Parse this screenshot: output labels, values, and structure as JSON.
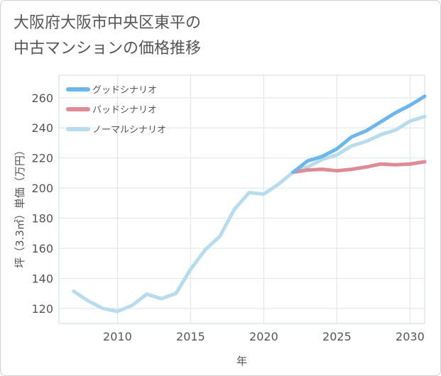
{
  "title_lines": [
    "大阪府大阪市中央区東平の",
    "中古マンションの価格推移"
  ],
  "chart_data": {
    "type": "line",
    "title": "大阪府大阪市中央区東平の中古マンションの価格推移",
    "xlabel": "年",
    "ylabel": "坪（3.3㎡）単価（万円）",
    "xlim": [
      2006,
      2031
    ],
    "ylim": [
      110,
      275
    ],
    "xticks": [
      2010,
      2015,
      2020,
      2025,
      2030
    ],
    "yticks": [
      120,
      140,
      160,
      180,
      200,
      220,
      240,
      260
    ],
    "grid": true,
    "legend_position": "top-left",
    "series": [
      {
        "name": "グッドシナリオ",
        "color": "#6cb6ec",
        "x": [
          2022,
          2023,
          2024,
          2025,
          2026,
          2027,
          2028,
          2029,
          2030,
          2031
        ],
        "y": [
          210.5,
          218,
          221,
          226,
          234,
          238,
          244,
          250,
          255,
          261
        ]
      },
      {
        "name": "バッドシナリオ",
        "color": "#e08a96",
        "x": [
          2022,
          2023,
          2024,
          2025,
          2026,
          2027,
          2028,
          2029,
          2030,
          2031
        ],
        "y": [
          210.5,
          212,
          212.5,
          211.5,
          212.5,
          214,
          216,
          215.5,
          216,
          217.5
        ]
      },
      {
        "name": "ノーマルシナリオ",
        "color": "#b8dcec",
        "x": [
          2007,
          2008,
          2009,
          2010,
          2011,
          2012,
          2013,
          2014,
          2015,
          2016,
          2017,
          2018,
          2019,
          2020,
          2021,
          2022,
          2023,
          2024,
          2025,
          2026,
          2027,
          2028,
          2029,
          2030,
          2031
        ],
        "y": [
          131.5,
          125,
          120,
          118,
          122,
          129.5,
          126.5,
          130,
          146,
          159,
          168,
          186,
          197,
          196,
          202.5,
          210.5,
          214,
          219,
          222,
          228,
          231,
          235.5,
          238.5,
          244.5,
          247.5
        ]
      }
    ]
  }
}
